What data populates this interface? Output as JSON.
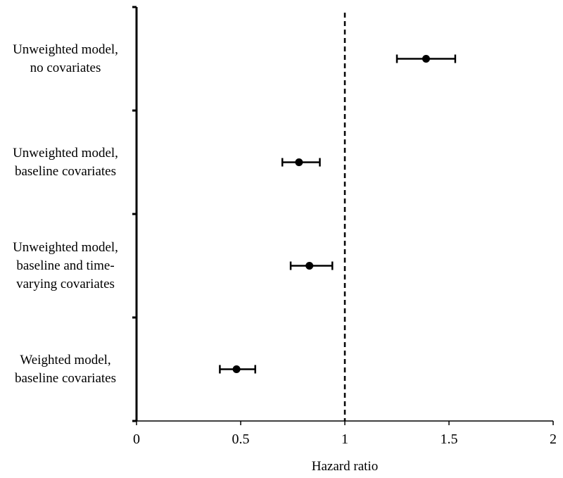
{
  "chart_data": {
    "type": "forest",
    "xlabel": "Hazard ratio",
    "ylabel": "",
    "xlim": [
      0,
      2
    ],
    "x_ticks": [
      0,
      0.5,
      1,
      1.5,
      2
    ],
    "x_tick_labels": [
      "0",
      "0.5",
      "1",
      "1.5",
      "2"
    ],
    "reference_line": 1,
    "reference_line_style": "dashed",
    "grid": false,
    "categories": [
      "Unweighted model,\nno covariates",
      "Unweighted model,\nbaseline covariates",
      "Unweighted model,\nbaseline and time-\nvarying covariates",
      "Weighted model,\nbaseline covariates"
    ],
    "estimates": [
      1.39,
      0.78,
      0.83,
      0.48
    ],
    "ci_lower": [
      1.25,
      0.7,
      0.74,
      0.4
    ],
    "ci_upper": [
      1.53,
      0.88,
      0.94,
      0.57
    ]
  }
}
